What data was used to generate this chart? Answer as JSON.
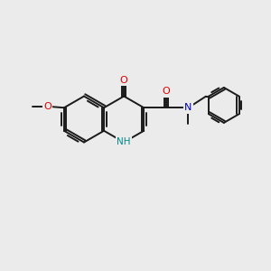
{
  "bg_color": "#ebebeb",
  "bond_color": "#1a1a1a",
  "lw": 1.4,
  "O_color": "#dd0000",
  "N_color": "#0000cc",
  "NH_color": "#008888",
  "fontsize": 8.0,
  "figsize": [
    3.0,
    3.0
  ],
  "dpi": 100,
  "xlim": [
    0,
    10
  ],
  "ylim": [
    0,
    10
  ]
}
